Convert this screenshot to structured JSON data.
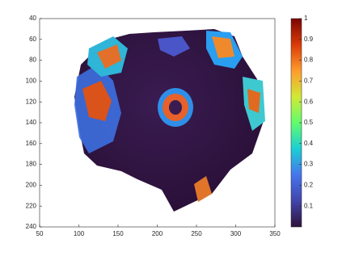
{
  "chart_data": {
    "type": "image",
    "xlim": [
      50,
      350
    ],
    "xticks": [
      50,
      100,
      150,
      200,
      250,
      300,
      350
    ],
    "ylim": [
      40,
      240
    ],
    "yticks": [
      40,
      60,
      80,
      100,
      120,
      140,
      160,
      180,
      200,
      220,
      240
    ],
    "y_reversed": true,
    "colorbar": {
      "clim": [
        0,
        1
      ],
      "ticks": [
        0.1,
        0.2,
        0.3,
        0.4,
        0.5,
        0.6,
        0.7,
        0.8,
        0.9,
        1
      ],
      "colormap": [
        "#30123b",
        "#4145ab",
        "#4675ed",
        "#1bcfd4",
        "#61fc6c",
        "#d2e935",
        "#fe9b2d",
        "#db3a07",
        "#7a0403"
      ]
    }
  }
}
